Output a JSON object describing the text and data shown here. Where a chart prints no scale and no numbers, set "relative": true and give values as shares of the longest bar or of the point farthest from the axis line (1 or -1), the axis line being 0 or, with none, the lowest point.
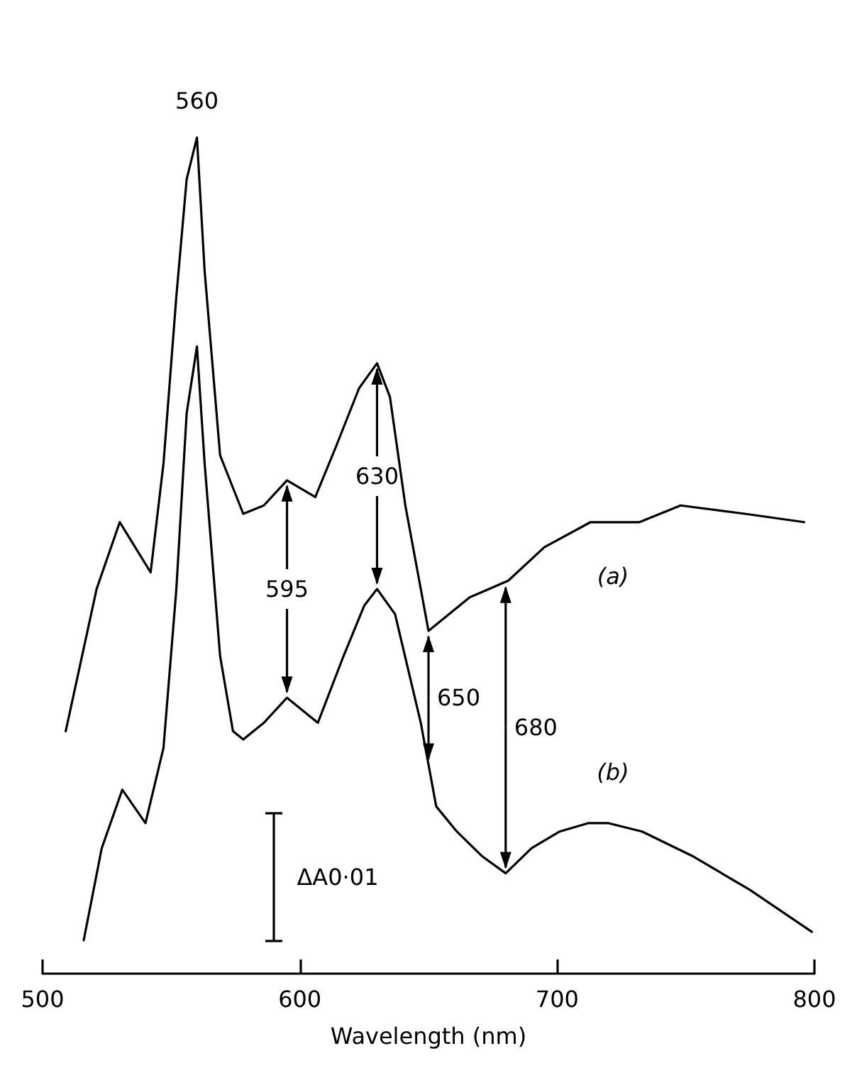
{
  "chart_data": {
    "type": "line",
    "relative": true,
    "xlabel": "Wavelength (nm)",
    "xlim": [
      500,
      800
    ],
    "xticks": [
      500,
      600,
      700,
      800
    ],
    "grid": false,
    "marker": "none",
    "line_style": "solid",
    "series": [
      {
        "color": "#000000",
        "x": [
          509,
          521,
          530,
          542,
          547,
          552,
          556,
          560,
          563,
          569,
          578,
          586,
          595,
          606,
          614,
          623,
          630,
          635,
          641,
          647,
          650,
          666,
          681,
          695,
          713,
          732,
          748,
          773,
          796
        ],
        "values": [
          0.29,
          0.46,
          0.54,
          0.48,
          0.61,
          0.81,
          0.95,
          1.0,
          0.84,
          0.62,
          0.55,
          0.56,
          0.59,
          0.57,
          0.63,
          0.7,
          0.73,
          0.69,
          0.56,
          0.46,
          0.41,
          0.45,
          0.47,
          0.51,
          0.54,
          0.54,
          0.56,
          0.55,
          0.54
        ]
      },
      {
        "color": "#000000",
        "x": [
          516,
          523,
          531,
          540,
          547,
          552,
          556,
          560,
          563,
          569,
          574,
          578,
          586,
          595,
          607,
          617,
          625,
          630,
          637,
          647,
          653,
          661,
          671,
          680,
          690,
          701,
          712,
          720,
          733,
          753,
          775,
          799
        ],
        "values": [
          0.04,
          0.15,
          0.22,
          0.18,
          0.27,
          0.46,
          0.67,
          0.75,
          0.61,
          0.38,
          0.29,
          0.28,
          0.3,
          0.33,
          0.3,
          0.38,
          0.44,
          0.46,
          0.43,
          0.3,
          0.2,
          0.17,
          0.14,
          0.12,
          0.15,
          0.17,
          0.18,
          0.18,
          0.17,
          0.14,
          0.1,
          0.05
        ]
      }
    ],
    "annotations": [
      {
        "text": "560",
        "x": 560,
        "y": 1.0
      },
      {
        "text": "595",
        "x": 595,
        "y": 0.59
      },
      {
        "text": "630",
        "x": 630,
        "y": 0.73
      },
      {
        "text": "650",
        "x": 650,
        "y": 0.41
      },
      {
        "text": "680",
        "x": 680,
        "y": 0.12
      },
      "(a)",
      "(b)",
      "ΔA0·01"
    ]
  }
}
